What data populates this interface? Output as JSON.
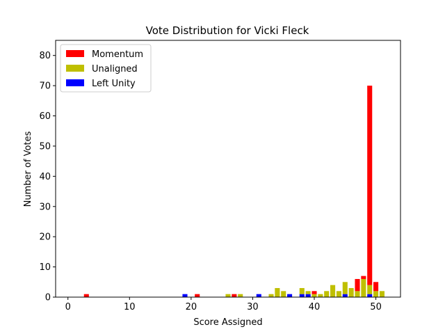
{
  "chart_data": {
    "type": "bar",
    "stacked": true,
    "title": "Vote Distribution for Vicki Fleck",
    "xlabel": "Score Assigned",
    "ylabel": "Number of Votes",
    "xlim": [
      -2,
      54
    ],
    "ylim": [
      0,
      85
    ],
    "xticks": [
      0,
      10,
      20,
      30,
      40,
      50
    ],
    "yticks": [
      0,
      10,
      20,
      30,
      40,
      50,
      60,
      70,
      80
    ],
    "grid": false,
    "legend_position": "top-left",
    "series": [
      {
        "name": "Left Unity",
        "color": "#0000ff",
        "points": [
          [
            19,
            1
          ],
          [
            31,
            1
          ],
          [
            36,
            1
          ],
          [
            38,
            1
          ],
          [
            39,
            1
          ],
          [
            45,
            1
          ],
          [
            49,
            1
          ]
        ]
      },
      {
        "name": "Unaligned",
        "color": "#bfbf00",
        "points": [
          [
            26,
            1
          ],
          [
            28,
            1
          ],
          [
            33,
            1
          ],
          [
            34,
            3
          ],
          [
            35,
            2
          ],
          [
            38,
            2
          ],
          [
            39,
            1
          ],
          [
            40,
            1
          ],
          [
            41,
            1
          ],
          [
            42,
            2
          ],
          [
            43,
            4
          ],
          [
            44,
            2
          ],
          [
            45,
            4
          ],
          [
            46,
            3
          ],
          [
            47,
            2
          ],
          [
            48,
            6
          ],
          [
            49,
            3
          ],
          [
            50,
            2
          ],
          [
            51,
            2
          ]
        ]
      },
      {
        "name": "Momentum",
        "color": "#ff0000",
        "points": [
          [
            3,
            1
          ],
          [
            21,
            1
          ],
          [
            27,
            1
          ],
          [
            40,
            1
          ],
          [
            47,
            4
          ],
          [
            48,
            1
          ],
          [
            49,
            66
          ],
          [
            50,
            3
          ]
        ]
      }
    ],
    "legend_order": [
      "Momentum",
      "Unaligned",
      "Left Unity"
    ]
  }
}
